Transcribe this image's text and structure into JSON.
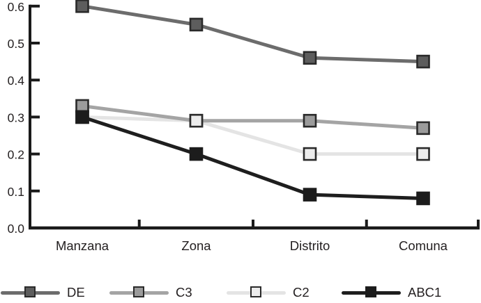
{
  "chart_data": {
    "type": "line",
    "title": "",
    "xlabel": "",
    "ylabel": "",
    "categories": [
      "Manzana",
      "Zona",
      "Distrito",
      "Comuna"
    ],
    "series": [
      {
        "name": "DE",
        "values": [
          0.6,
          0.55,
          0.46,
          0.45
        ],
        "line_color": "#6c6c6c",
        "marker_fill": "#5d5d5d",
        "marker_stroke": "#2a2a2a"
      },
      {
        "name": "C3",
        "values": [
          0.33,
          0.29,
          0.29,
          0.27
        ],
        "line_color": "#a4a4a4",
        "marker_fill": "#9b9b9b",
        "marker_stroke": "#2a2a2a"
      },
      {
        "name": "C2",
        "values": [
          0.3,
          0.29,
          0.2,
          0.2
        ],
        "line_color": "#e4e4e4",
        "marker_fill": "#ececec",
        "marker_stroke": "#2a2a2a"
      },
      {
        "name": "ABC1",
        "values": [
          0.3,
          0.2,
          0.09,
          0.08
        ],
        "line_color": "#1e1e1e",
        "marker_fill": "#1c1c1c",
        "marker_stroke": "#1c1c1c"
      }
    ],
    "y_axis": {
      "min": 0.0,
      "max": 0.6,
      "step": 0.1,
      "tick_labels": [
        "0.0",
        "0.1",
        "0.2",
        "0.3",
        "0.4",
        "0.5",
        "0.6"
      ]
    },
    "layout": {
      "grid": false,
      "legend_position": "bottom",
      "marker_shape": "square",
      "line_draw_order": [
        "C2",
        "DE",
        "C3",
        "ABC1"
      ],
      "marker_draw_order": [
        "DE",
        "C3",
        "C2",
        "ABC1"
      ],
      "axis_color": "#1a1a1a",
      "text_color": "#231f20"
    }
  }
}
